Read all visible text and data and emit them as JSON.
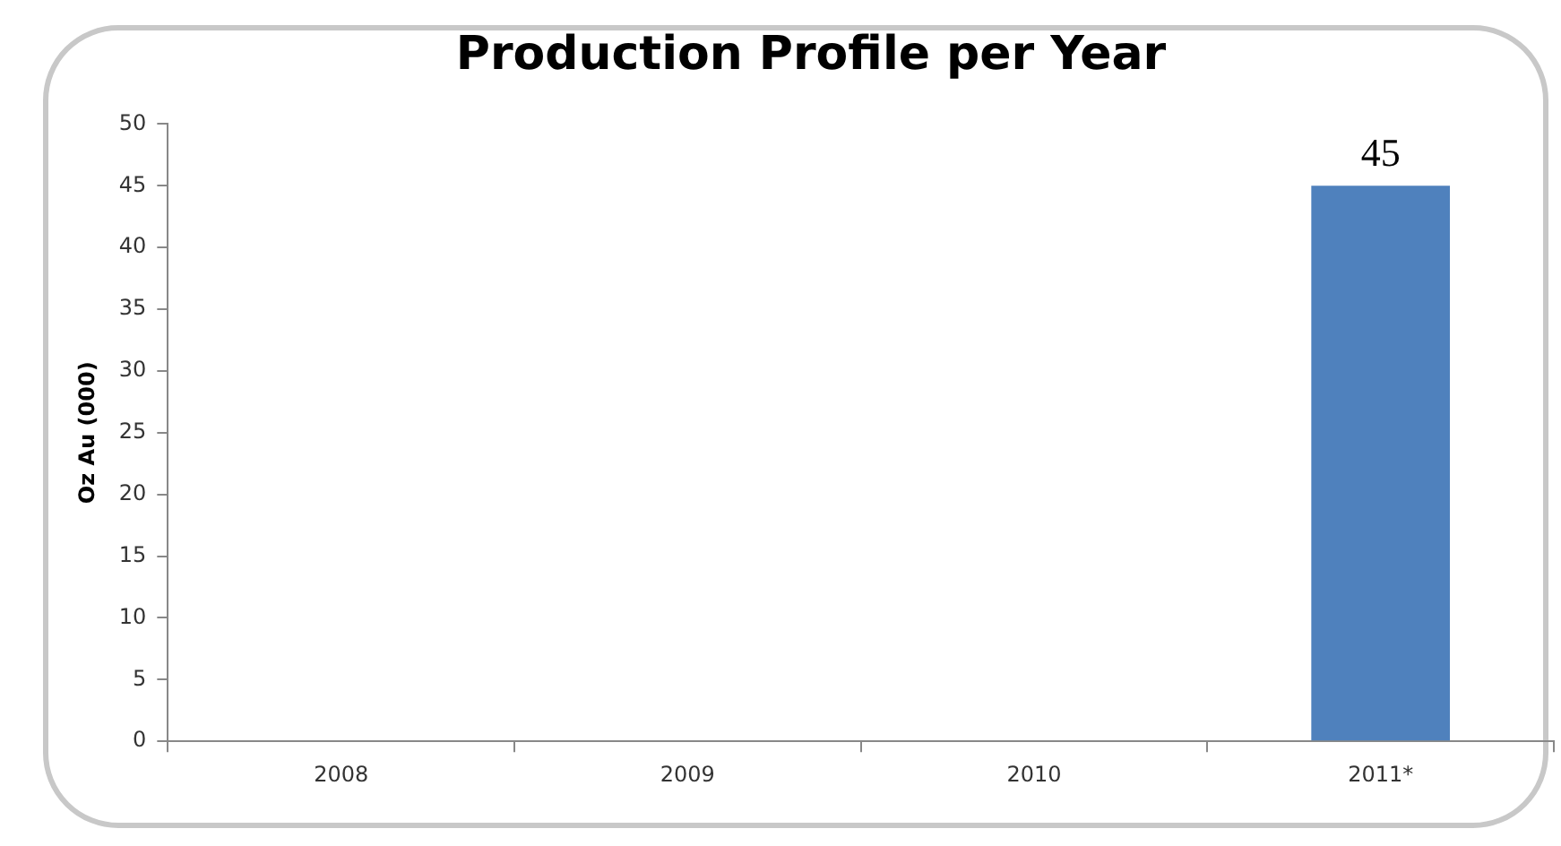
{
  "chart_data": {
    "type": "bar",
    "title": "Production Profile per Year",
    "ylabel": "Oz Au (000)",
    "categories": [
      "2008",
      "2009",
      "2010",
      "2011*"
    ],
    "values": [
      null,
      null,
      null,
      45
    ],
    "color": "#4f81bd",
    "value_labels": [
      null,
      null,
      null,
      "45"
    ],
    "ylim": [
      0,
      50
    ],
    "yticks": [
      0,
      5,
      10,
      15,
      20,
      25,
      30,
      35,
      40,
      45,
      50
    ],
    "grid": false,
    "legend": false
  }
}
